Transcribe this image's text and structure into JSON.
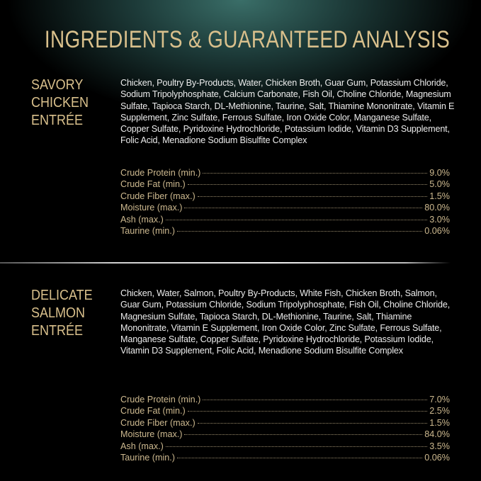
{
  "title": "INGREDIENTS & GUARANTEED ANALYSIS",
  "colors": {
    "gold": "#d9c08c",
    "background": "#000000",
    "glow": "#3a6e68"
  },
  "sections": [
    {
      "label_lines": [
        "SAVORY",
        "CHICKEN",
        "ENTRÉE"
      ],
      "ingredients": "Chicken, Poultry By-Products, Water, Chicken Broth, Guar Gum, Potassium Chloride, Sodium Tripolyphosphate, Calcium Carbonate, Fish Oil, Choline Chloride, Magnesium Sulfate, Tapioca Starch, DL-Methionine, Taurine, Salt, Thiamine Mononitrate, Vitamin E Supplement, Zinc Sulfate, Ferrous Sulfate, Iron Oxide Color, Manganese Sulfate, Copper Sulfate, Pyridoxine Hydrochloride, Potassium Iodide, Vitamin D3 Supplement, Folic Acid, Menadione Sodium Bisulfite Complex",
      "analysis": [
        {
          "name": "Crude Protein (min.)",
          "value": "9.0%"
        },
        {
          "name": "Crude Fat (min.)",
          "value": "5.0%"
        },
        {
          "name": "Crude Fiber (max.)",
          "value": "1.5%"
        },
        {
          "name": "Moisture (max.)",
          "value": "80.0%"
        },
        {
          "name": "Ash (max.)",
          "value": "3.0%"
        },
        {
          "name": "Taurine (min.)",
          "value": "0.06%"
        }
      ]
    },
    {
      "label_lines": [
        "DELICATE",
        "SALMON",
        "ENTRÉE"
      ],
      "ingredients": "Chicken, Water, Salmon, Poultry By-Products, White Fish, Chicken Broth, Salmon, Guar Gum, Potassium Chloride, Sodium Tripolyphosphate, Fish Oil, Choline Chloride, Magnesium Sulfate, Tapioca Starch, DL-Methionine, Taurine, Salt, Thiamine Mononitrate, Vitamin E Supplement, Iron Oxide Color, Zinc Sulfate, Ferrous Sulfate, Manganese Sulfate, Copper Sulfate, Pyridoxine Hydrochloride, Potassium Iodide, Vitamin D3 Supplement, Folic Acid, Menadione Sodium Bisulfite Complex",
      "analysis": [
        {
          "name": "Crude Protein (min.)",
          "value": "7.0%"
        },
        {
          "name": "Crude Fat (min.)",
          "value": "2.5%"
        },
        {
          "name": "Crude Fiber (max.)",
          "value": "1.5%"
        },
        {
          "name": "Moisture (max.)",
          "value": "84.0%"
        },
        {
          "name": "Ash (max.)",
          "value": "3.5%"
        },
        {
          "name": "Taurine (min.)",
          "value": "0.06%"
        }
      ]
    }
  ]
}
